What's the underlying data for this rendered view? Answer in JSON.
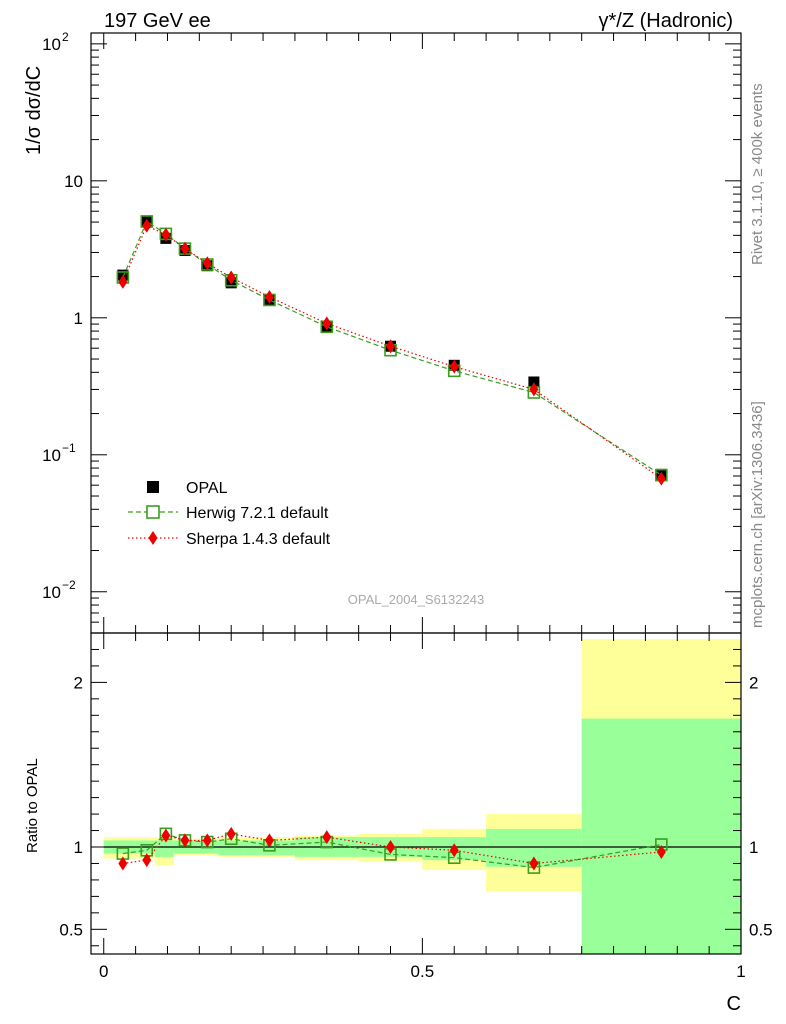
{
  "header": {
    "left": "197 GeV ee",
    "right": "γ*/Z (Hadronic)"
  },
  "side_texts": {
    "rivet": "Rivet 3.1.10, ≥ 400k events",
    "mcplots": "mcplots.cern.ch [arXiv:1306.3436]"
  },
  "watermark": "OPAL_2004_S6132243",
  "colors": {
    "herwig": "#3a9e1e",
    "sherpa": "#ee0000",
    "band_outer": "#ffff99",
    "band_inner": "#99ff99",
    "data": "#000000"
  },
  "legend": [
    {
      "label": "OPAL",
      "marker": "filled-square",
      "color": "#000000"
    },
    {
      "label": "Herwig 7.2.1 default",
      "marker": "open-square-dashed",
      "color": "#3a9e1e"
    },
    {
      "label": "Sherpa 1.4.3 default",
      "marker": "diamond-dotted",
      "color": "#ee0000"
    }
  ],
  "chart_data": [
    {
      "type": "scatter",
      "panel": "main",
      "ylabel": "1/σ dσ/dC",
      "y_scale": "log",
      "ylim": [
        0.005,
        120
      ],
      "y_ticks": [
        {
          "value": 0.01,
          "base": "10",
          "exp": "−2"
        },
        {
          "value": 0.1,
          "base": "10",
          "exp": "−1"
        },
        {
          "value": 1,
          "text": "1"
        },
        {
          "value": 10,
          "text": "10"
        },
        {
          "value": 100,
          "base": "10",
          "exp": "2"
        }
      ],
      "xlim": [
        -0.02,
        1.0
      ],
      "x": [
        0.03,
        0.0675,
        0.0975,
        0.1275,
        0.1625,
        0.2,
        0.26,
        0.35,
        0.45,
        0.55,
        0.675,
        0.875
      ],
      "series": [
        {
          "name": "OPAL",
          "values": [
            2.05,
            5.1,
            3.8,
            3.1,
            2.4,
            1.8,
            1.35,
            0.86,
            0.62,
            0.45,
            0.34,
            0.072
          ]
        },
        {
          "name": "Herwig 7.2.1 default",
          "values": [
            1.97,
            5.05,
            4.1,
            3.2,
            2.45,
            1.88,
            1.35,
            0.86,
            0.58,
            0.41,
            0.285,
            0.071
          ]
        },
        {
          "name": "Sherpa 1.4.3 default",
          "values": [
            1.83,
            4.7,
            4.05,
            3.2,
            2.5,
            1.97,
            1.42,
            0.91,
            0.62,
            0.44,
            0.3,
            0.067
          ]
        }
      ]
    },
    {
      "type": "scatter",
      "panel": "ratio",
      "ylabel": "Ratio to OPAL",
      "xlabel": "C",
      "ylim": [
        0.35,
        2.3
      ],
      "y_ticks": [
        0.5,
        1,
        2
      ],
      "x_ticks": [
        0,
        0.5,
        1
      ],
      "bins": [
        {
          "lo": 0.0,
          "hi": 0.05,
          "inner": [
            0.96,
            1.04
          ],
          "outer": [
            0.93,
            1.06
          ]
        },
        {
          "lo": 0.05,
          "hi": 0.08,
          "inner": [
            0.96,
            1.04
          ],
          "outer": [
            0.93,
            1.06
          ]
        },
        {
          "lo": 0.08,
          "hi": 0.11,
          "inner": [
            0.94,
            1.04
          ],
          "outer": [
            0.89,
            1.06
          ]
        },
        {
          "lo": 0.11,
          "hi": 0.14,
          "inner": [
            0.96,
            1.04
          ],
          "outer": [
            0.95,
            1.05
          ]
        },
        {
          "lo": 0.14,
          "hi": 0.18,
          "inner": [
            0.96,
            1.04
          ],
          "outer": [
            0.95,
            1.05
          ]
        },
        {
          "lo": 0.18,
          "hi": 0.22,
          "inner": [
            0.95,
            1.04
          ],
          "outer": [
            0.94,
            1.06
          ]
        },
        {
          "lo": 0.22,
          "hi": 0.3,
          "inner": [
            0.95,
            1.04
          ],
          "outer": [
            0.94,
            1.06
          ]
        },
        {
          "lo": 0.3,
          "hi": 0.4,
          "inner": [
            0.94,
            1.06
          ],
          "outer": [
            0.92,
            1.07
          ]
        },
        {
          "lo": 0.4,
          "hi": 0.5,
          "inner": [
            0.94,
            1.06
          ],
          "outer": [
            0.91,
            1.08
          ]
        },
        {
          "lo": 0.5,
          "hi": 0.6,
          "inner": [
            0.92,
            1.06
          ],
          "outer": [
            0.86,
            1.11
          ]
        },
        {
          "lo": 0.6,
          "hi": 0.75,
          "inner": [
            0.88,
            1.11
          ],
          "outer": [
            0.73,
            1.2
          ]
        },
        {
          "lo": 0.75,
          "hi": 1.0,
          "inner": [
            0.35,
            1.78
          ],
          "outer": [
            0.35,
            2.27
          ]
        }
      ],
      "x": [
        0.03,
        0.0675,
        0.0975,
        0.1275,
        0.1625,
        0.2,
        0.26,
        0.35,
        0.45,
        0.55,
        0.675,
        0.875
      ],
      "series": [
        {
          "name": "Herwig 7.2.1 default",
          "values": [
            0.96,
            0.98,
            1.08,
            1.04,
            1.03,
            1.05,
            1.01,
            1.03,
            0.955,
            0.935,
            0.875,
            1.015
          ]
        },
        {
          "name": "Sherpa 1.4.3 default",
          "values": [
            0.9,
            0.92,
            1.07,
            1.04,
            1.04,
            1.08,
            1.04,
            1.06,
            1.0,
            0.98,
            0.9,
            0.97
          ]
        }
      ]
    }
  ]
}
